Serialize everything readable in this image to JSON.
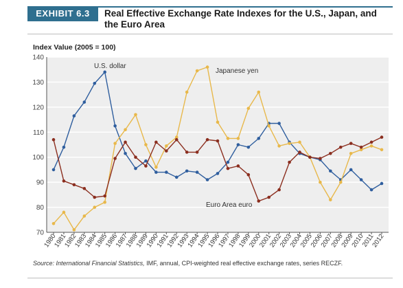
{
  "header": {
    "badge": "EXHIBIT 6.3",
    "title": "Real Effective Exchange Rate Indexes for the U.S., Japan, and the Euro Area",
    "colors": {
      "badge_bg": "#2f6f8f",
      "rule": "#2f6f8f"
    }
  },
  "chart_data": {
    "type": "line",
    "title": "Real Effective Exchange Rate Indexes for the U.S., Japan, and the Euro Area",
    "ylabel": "Index Value (2005 = 100)",
    "xlabel": "",
    "ylim": [
      70,
      140
    ],
    "yticks": [
      70,
      80,
      90,
      100,
      110,
      120,
      130,
      140
    ],
    "grid": true,
    "categories": [
      "1980",
      "1981",
      "1982",
      "1983",
      "1984",
      "1985",
      "1986",
      "1987",
      "1988",
      "1989",
      "1990",
      "1991",
      "1992",
      "1993",
      "1994",
      "1995",
      "1996",
      "1997",
      "1998",
      "1999",
      "2000",
      "2001",
      "2002",
      "2003",
      "2004",
      "2005",
      "2006",
      "2007",
      "2008",
      "2009",
      "2010",
      "2011",
      "2012"
    ],
    "series": [
      {
        "name": "U.S. dollar",
        "color": "#2f5e9e",
        "values": [
          95,
          104,
          116.5,
          122,
          129.5,
          134,
          112.5,
          101.5,
          95.5,
          98.5,
          94,
          94,
          92,
          94.5,
          94,
          91,
          93.5,
          98,
          105,
          104,
          107.5,
          113.5,
          113.5,
          106,
          101.5,
          100,
          99,
          94.5,
          91,
          95,
          91,
          87,
          89.5
        ]
      },
      {
        "name": "Japanese yen",
        "color": "#e8b84a",
        "values": [
          73.5,
          78,
          71,
          76.5,
          80,
          82,
          105.5,
          111,
          117,
          105,
          96,
          104.5,
          108,
          126,
          134.5,
          136,
          114,
          107.5,
          107.5,
          119.5,
          126,
          112.5,
          104.5,
          105.5,
          106,
          100,
          90,
          83,
          90,
          101.5,
          103,
          104.5,
          103
        ]
      },
      {
        "name": "Euro Area euro",
        "color": "#8b2e1f",
        "values": [
          107,
          90.5,
          89,
          87.5,
          84,
          84.5,
          99.5,
          106,
          100,
          96.5,
          106,
          102.5,
          107,
          102,
          102,
          107,
          106.5,
          95.5,
          96.5,
          93,
          82.5,
          84,
          87,
          98,
          102,
          100,
          99.5,
          101.5,
          104,
          105.5,
          104,
          106,
          108
        ]
      }
    ],
    "annotations": [
      "U.S. dollar",
      "Japanese yen",
      "Euro Area euro"
    ]
  },
  "source": {
    "prefix": "Source:",
    "italic": "International Financial Statistics,",
    "rest": "IMF, annual, CPI-weighted real effective exchange rates, series RECZF."
  }
}
